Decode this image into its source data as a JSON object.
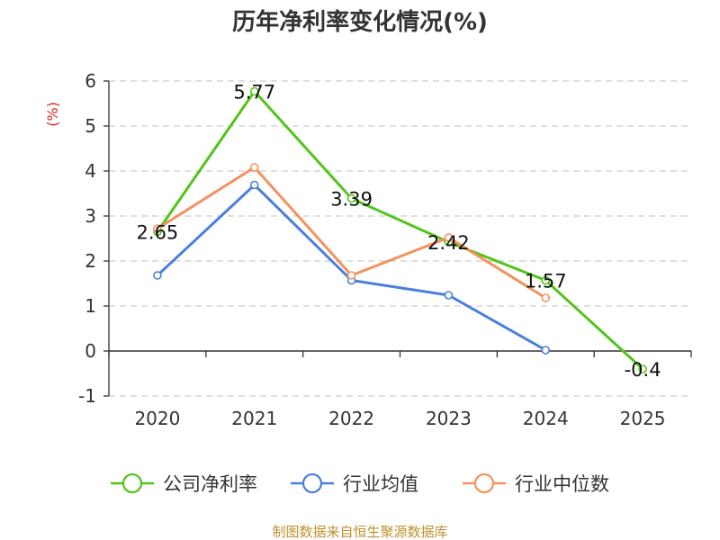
{
  "title": "历年净利率变化情况(%)",
  "source_text": "制图数据来自恒生聚源数据库",
  "colors": {
    "company": "#52c41a",
    "industry_avg": "#4a7fdc",
    "industry_median": "#f4915e",
    "unit": "#e02020",
    "source": "#c0902c",
    "grid": "#cccccc"
  },
  "chart_data": {
    "type": "line",
    "title": "历年净利率变化情况(%)",
    "ylabel": "(%)",
    "xlabel": "",
    "categories": [
      "2020",
      "2021",
      "2022",
      "2023",
      "2024",
      "2025"
    ],
    "ylim": [
      -1,
      6
    ],
    "yticks": [
      -1,
      0,
      1,
      2,
      3,
      4,
      5,
      6
    ],
    "grid": "horizontal dashed",
    "legend_position": "bottom",
    "series": [
      {
        "name": "公司净利率",
        "color_key": "company",
        "values": [
          2.65,
          5.77,
          3.39,
          2.42,
          1.57,
          -0.4
        ],
        "labels": [
          "2.65",
          "5.77",
          "3.39",
          "2.42",
          "1.57",
          "-0.4"
        ]
      },
      {
        "name": "行业均值",
        "color_key": "industry_avg",
        "values": [
          1.68,
          3.69,
          1.57,
          1.24,
          0.02,
          null
        ]
      },
      {
        "name": "行业中位数",
        "color_key": "industry_median",
        "values": [
          2.72,
          4.08,
          1.68,
          2.52,
          1.18,
          null
        ]
      }
    ]
  }
}
